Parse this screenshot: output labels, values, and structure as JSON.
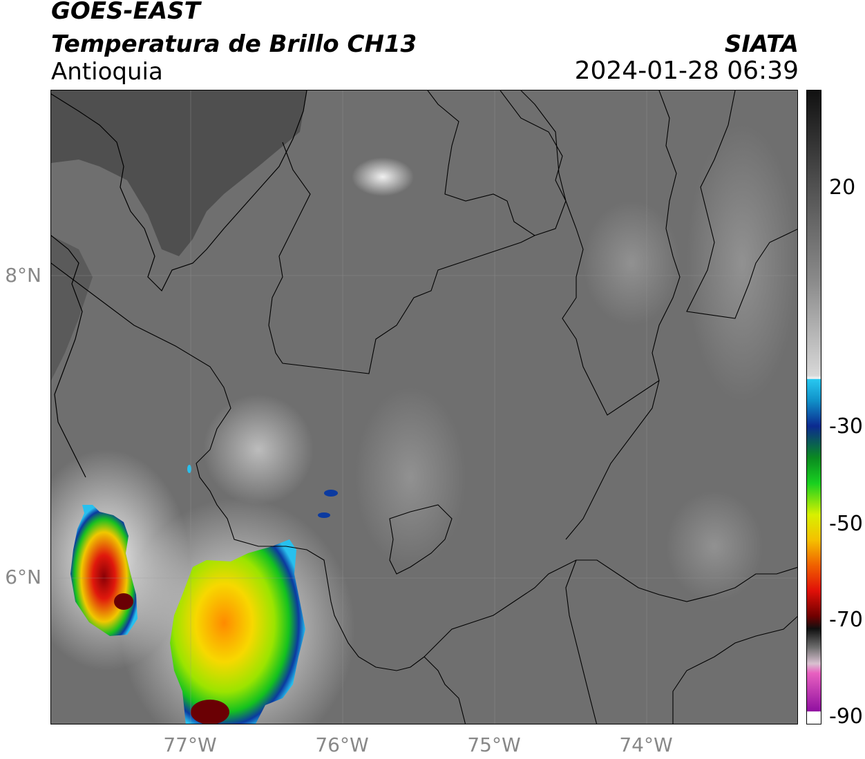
{
  "header": {
    "satellite": "GOES-EAST",
    "product": "Temperatura de Brillo CH13",
    "region": "Antioquia",
    "agency": "SIATA",
    "datetime": "2024-01-28 06:39"
  },
  "axes": {
    "lat_labels": [
      "8°N",
      "6°N"
    ],
    "lon_labels": [
      "77°W",
      "76°W",
      "75°W",
      "74°W"
    ]
  },
  "colorbar": {
    "tick_labels": [
      "20",
      "-30",
      "-50",
      "-70",
      "-90"
    ]
  },
  "colors": {
    "land_gray": "#6f6f6f",
    "sea_gray": "#4d4d4d",
    "storm_red": "#d0100a",
    "storm_yellow": "#f5e400",
    "storm_green": "#12c21b",
    "storm_blue": "#0b3aa0",
    "cold_cyan": "#23c8f0"
  }
}
